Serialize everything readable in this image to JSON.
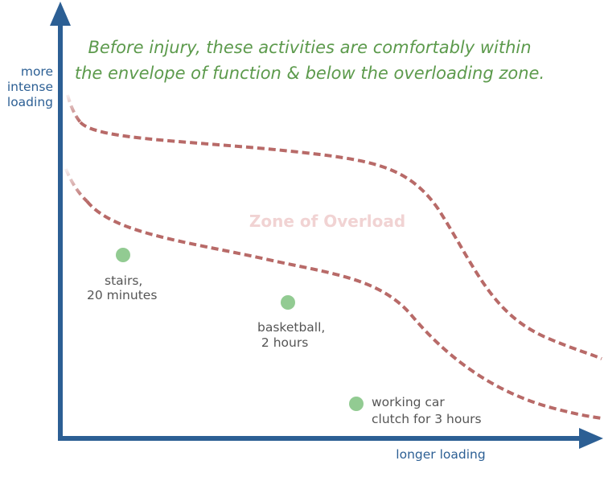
{
  "annotation": {
    "lines": [
      "Before injury, these activities are comfortably within",
      "the envelope of function & below the overloading zone."
    ]
  },
  "y_axis_label": {
    "lines": [
      "more",
      "intense",
      "loading"
    ]
  },
  "x_axis_label": "longer loading",
  "zone_label": "Zone of Overload",
  "points": [
    {
      "label_lines": [
        "stairs,",
        "20 minutes"
      ]
    },
    {
      "label_lines": [
        "basketball,",
        " 2 hours"
      ]
    },
    {
      "label_lines": [
        "working car",
        "clutch for 3 hours"
      ]
    }
  ]
}
